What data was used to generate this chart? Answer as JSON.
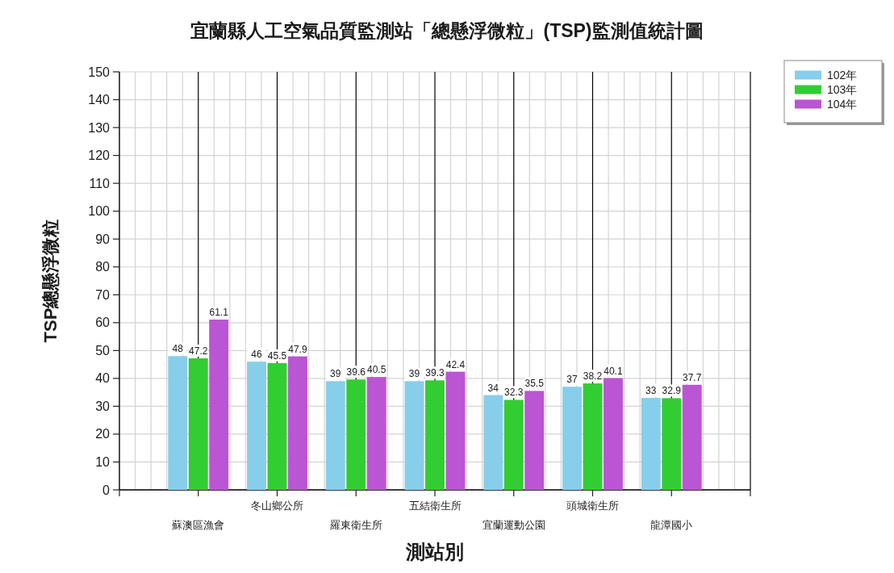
{
  "chart_data": {
    "type": "bar",
    "title": "宜蘭縣人工空氣品質監測站「總懸浮微粒」(TSP)監測值統計圖",
    "xlabel": "測站別",
    "ylabel": "TSP總懸浮微粒",
    "categories": [
      "蘇澳區漁會",
      "冬山鄉公所",
      "羅東衛生所",
      "五結衛生所",
      "宜蘭運動公園",
      "頭城衛生所",
      "龍潭國小"
    ],
    "series": [
      {
        "name": "102年",
        "color": "#87ceeb",
        "values": [
          48,
          46,
          39,
          39,
          34,
          37,
          33
        ]
      },
      {
        "name": "103年",
        "color": "#32cd32",
        "values": [
          47.2,
          45.5,
          39.6,
          39.3,
          32.3,
          38.2,
          32.9
        ]
      },
      {
        "name": "104年",
        "color": "#ba55d3",
        "values": [
          61.1,
          47.9,
          40.5,
          42.4,
          35.5,
          40.1,
          37.7
        ]
      }
    ],
    "ylim": [
      0,
      150
    ],
    "yticks": [
      0,
      10,
      20,
      30,
      40,
      50,
      60,
      70,
      80,
      90,
      100,
      110,
      120,
      130,
      140,
      150
    ],
    "grid": true,
    "legend": "top right",
    "data_labels": true
  }
}
